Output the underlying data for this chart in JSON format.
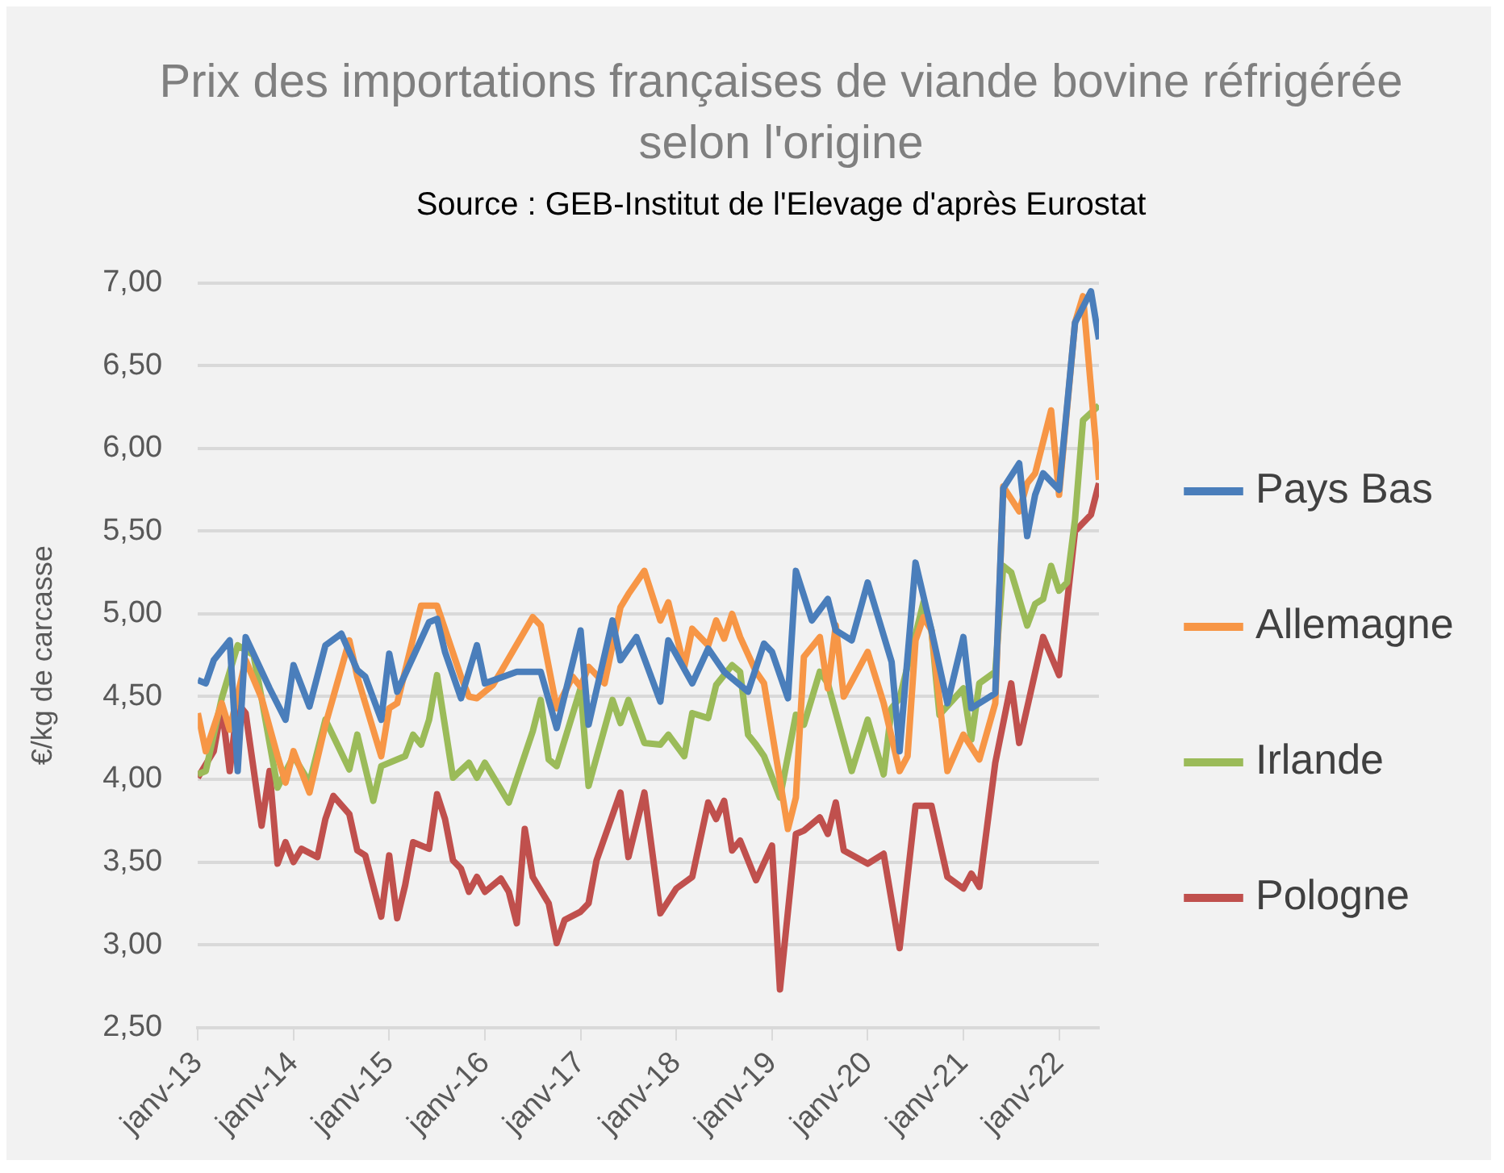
{
  "chart_data": {
    "type": "line",
    "title": "Prix des importations françaises de viande bovine réfrigérée selon l'origine",
    "annotations": [
      "Source : GEB-Institut de l'Elevage d'après Eurostat"
    ],
    "ylabel": "€/kg de carcasse",
    "grid": "y",
    "legend": "right",
    "xlim": [
      "2013-01",
      "2022-06"
    ],
    "xticks": [
      {
        "value": "2013-01",
        "label": "janv-13"
      },
      {
        "value": "2014-01",
        "label": "janv-14"
      },
      {
        "value": "2015-01",
        "label": "janv-15"
      },
      {
        "value": "2016-01",
        "label": "janv-16"
      },
      {
        "value": "2017-01",
        "label": "janv-17"
      },
      {
        "value": "2018-01",
        "label": "janv-18"
      },
      {
        "value": "2019-01",
        "label": "janv-19"
      },
      {
        "value": "2020-01",
        "label": "janv-20"
      },
      {
        "value": "2021-01",
        "label": "janv-21"
      },
      {
        "value": "2022-01",
        "label": "janv-22"
      }
    ],
    "ylim": [
      2.5,
      7
    ],
    "yticks": [
      {
        "value": 2.5,
        "label": "2,50"
      },
      {
        "value": 3,
        "label": "3,00"
      },
      {
        "value": 3.5,
        "label": "3,50"
      },
      {
        "value": 4,
        "label": "4,00"
      },
      {
        "value": 4.5,
        "label": "4,50"
      },
      {
        "value": 5,
        "label": "5,00"
      },
      {
        "value": 5.5,
        "label": "5,50"
      },
      {
        "value": 6,
        "label": "6,00"
      },
      {
        "value": 6.5,
        "label": "6,50"
      },
      {
        "value": 7,
        "label": "7,00"
      }
    ],
    "series": [
      {
        "name": "Pays Bas",
        "color": "#4a7ebb",
        "x": [
          "2013-01",
          "2013-02",
          "2013-03",
          "2013-04",
          "2013-05",
          "2013-06",
          "2013-07",
          "2013-10",
          "2013-12",
          "2014-01",
          "2014-03",
          "2014-05",
          "2014-07",
          "2014-09",
          "2014-10",
          "2014-12",
          "2015-01",
          "2015-02",
          "2015-04",
          "2015-06",
          "2015-07",
          "2015-08",
          "2015-10",
          "2015-12",
          "2016-01",
          "2016-05",
          "2016-08",
          "2016-10",
          "2017-01",
          "2017-02",
          "2017-05",
          "2017-06",
          "2017-08",
          "2017-11",
          "2017-12",
          "2018-03",
          "2018-05",
          "2018-07",
          "2018-10",
          "2018-12",
          "2019-01",
          "2019-03",
          "2019-04",
          "2019-06",
          "2019-08",
          "2019-09",
          "2019-11",
          "2020-01",
          "2020-04",
          "2020-05",
          "2020-07",
          "2020-09",
          "2020-11",
          "2021-01",
          "2021-02",
          "2021-05",
          "2021-06",
          "2021-08",
          "2021-09",
          "2021-10",
          "2021-11",
          "2022-01",
          "2022-03",
          "2022-05",
          "2022-06"
        ],
        "values": [
          4.6,
          4.58,
          4.72,
          4.78,
          4.84,
          4.05,
          4.86,
          4.55,
          4.36,
          4.69,
          4.44,
          4.81,
          4.88,
          4.66,
          4.62,
          4.36,
          4.76,
          4.53,
          4.74,
          4.95,
          4.97,
          4.77,
          4.49,
          4.81,
          4.58,
          4.65,
          4.65,
          4.31,
          4.9,
          4.33,
          4.96,
          4.72,
          4.86,
          4.47,
          4.84,
          4.58,
          4.79,
          4.65,
          4.53,
          4.82,
          4.77,
          4.49,
          5.26,
          4.96,
          5.09,
          4.9,
          4.84,
          5.19,
          4.71,
          4.17,
          5.31,
          4.9,
          4.46,
          4.86,
          4.43,
          4.52,
          5.76,
          5.91,
          5.47,
          5.72,
          5.85,
          5.75,
          6.76,
          6.95,
          6.66
        ]
      },
      {
        "name": "Allemagne",
        "color": "#f79646",
        "x": [
          "2013-01",
          "2013-02",
          "2013-04",
          "2013-05",
          "2013-07",
          "2013-09",
          "2013-11",
          "2013-12",
          "2014-01",
          "2014-03",
          "2014-05",
          "2014-08",
          "2014-09",
          "2014-12",
          "2015-01",
          "2015-02",
          "2015-05",
          "2015-07",
          "2015-10",
          "2015-11",
          "2015-12",
          "2016-02",
          "2016-03",
          "2016-07",
          "2016-08",
          "2016-10",
          "2016-12",
          "2017-01",
          "2017-02",
          "2017-04",
          "2017-06",
          "2017-07",
          "2017-09",
          "2017-11",
          "2017-12",
          "2018-02",
          "2018-03",
          "2018-05",
          "2018-06",
          "2018-07",
          "2018-08",
          "2018-09",
          "2018-11",
          "2018-12",
          "2019-03",
          "2019-04",
          "2019-05",
          "2019-07",
          "2019-08",
          "2019-09",
          "2019-10",
          "2020-01",
          "2020-03",
          "2020-05",
          "2020-06",
          "2020-07",
          "2020-08",
          "2020-09",
          "2020-11",
          "2021-01",
          "2021-03",
          "2021-05",
          "2021-06",
          "2021-08",
          "2021-09",
          "2021-10",
          "2021-12",
          "2022-01",
          "2022-03",
          "2022-04",
          "2022-06"
        ],
        "values": [
          4.4,
          4.17,
          4.46,
          4.3,
          4.72,
          4.49,
          4.14,
          3.98,
          4.17,
          3.92,
          4.33,
          4.84,
          4.62,
          4.14,
          4.43,
          4.46,
          5.05,
          5.05,
          4.62,
          4.5,
          4.49,
          4.57,
          4.65,
          4.98,
          4.93,
          4.43,
          4.62,
          4.56,
          4.68,
          4.58,
          5.04,
          5.12,
          5.26,
          4.96,
          5.07,
          4.68,
          4.91,
          4.81,
          4.96,
          4.85,
          5.0,
          4.86,
          4.65,
          4.58,
          3.7,
          3.89,
          4.74,
          4.86,
          4.55,
          4.93,
          4.5,
          4.77,
          4.46,
          4.05,
          4.14,
          4.84,
          4.98,
          4.9,
          4.05,
          4.27,
          4.12,
          4.46,
          5.77,
          5.62,
          5.79,
          5.85,
          6.23,
          5.72,
          6.76,
          6.92,
          5.81
        ]
      },
      {
        "name": "Irlande",
        "color": "#9bbb59",
        "x": [
          "2013-01",
          "2013-02",
          "2013-04",
          "2013-06",
          "2013-08",
          "2013-09",
          "2013-11",
          "2014-01",
          "2014-03",
          "2014-05",
          "2014-08",
          "2014-09",
          "2014-11",
          "2014-12",
          "2015-03",
          "2015-04",
          "2015-05",
          "2015-06",
          "2015-07",
          "2015-09",
          "2015-11",
          "2015-12",
          "2016-01",
          "2016-04",
          "2016-07",
          "2016-08",
          "2016-09",
          "2016-10",
          "2017-01",
          "2017-02",
          "2017-05",
          "2017-06",
          "2017-07",
          "2017-09",
          "2017-11",
          "2017-12",
          "2018-02",
          "2018-03",
          "2018-05",
          "2018-06",
          "2018-08",
          "2018-09",
          "2018-10",
          "2018-11",
          "2018-12",
          "2019-02",
          "2019-04",
          "2019-05",
          "2019-07",
          "2019-08",
          "2019-11",
          "2020-01",
          "2020-03",
          "2020-04",
          "2020-05",
          "2020-08",
          "2020-09",
          "2020-10",
          "2021-01",
          "2021-02",
          "2021-03",
          "2021-05",
          "2021-06",
          "2021-07",
          "2021-09",
          "2021-10",
          "2021-11",
          "2021-12",
          "2022-01",
          "2022-02",
          "2022-03",
          "2022-04",
          "2022-06"
        ],
        "values": [
          4.03,
          4.05,
          4.49,
          4.81,
          4.75,
          4.49,
          3.95,
          4.14,
          3.98,
          4.36,
          4.06,
          4.27,
          3.87,
          4.08,
          4.14,
          4.27,
          4.21,
          4.36,
          4.63,
          4.01,
          4.1,
          4.01,
          4.1,
          3.86,
          4.29,
          4.48,
          4.12,
          4.08,
          4.55,
          3.96,
          4.48,
          4.34,
          4.48,
          4.22,
          4.21,
          4.27,
          4.14,
          4.4,
          4.37,
          4.57,
          4.69,
          4.65,
          4.27,
          4.21,
          4.14,
          3.89,
          4.39,
          4.33,
          4.65,
          4.58,
          4.05,
          4.36,
          4.03,
          4.43,
          4.49,
          5.07,
          4.9,
          4.39,
          4.55,
          4.24,
          4.58,
          4.65,
          5.29,
          5.25,
          4.93,
          5.06,
          5.09,
          5.29,
          5.14,
          5.19,
          5.57,
          6.17,
          6.26
        ]
      },
      {
        "name": "Pologne",
        "color": "#c0504d",
        "x": [
          "2013-01",
          "2013-03",
          "2013-04",
          "2013-05",
          "2013-06",
          "2013-07",
          "2013-09",
          "2013-10",
          "2013-11",
          "2013-12",
          "2014-01",
          "2014-02",
          "2014-04",
          "2014-05",
          "2014-06",
          "2014-08",
          "2014-09",
          "2014-10",
          "2014-12",
          "2015-01",
          "2015-02",
          "2015-03",
          "2015-04",
          "2015-06",
          "2015-07",
          "2015-08",
          "2015-09",
          "2015-10",
          "2015-11",
          "2015-12",
          "2016-01",
          "2016-03",
          "2016-04",
          "2016-05",
          "2016-06",
          "2016-07",
          "2016-09",
          "2016-10",
          "2016-11",
          "2017-01",
          "2017-02",
          "2017-03",
          "2017-06",
          "2017-07",
          "2017-09",
          "2017-11",
          "2018-01",
          "2018-03",
          "2018-05",
          "2018-06",
          "2018-07",
          "2018-08",
          "2018-09",
          "2018-11",
          "2019-01",
          "2019-02",
          "2019-04",
          "2019-05",
          "2019-07",
          "2019-08",
          "2019-09",
          "2019-10",
          "2020-01",
          "2020-03",
          "2020-05",
          "2020-07",
          "2020-09",
          "2020-11",
          "2021-01",
          "2021-02",
          "2021-03",
          "2021-05",
          "2021-07",
          "2021-08",
          "2021-11",
          "2022-01",
          "2022-03",
          "2022-05",
          "2022-06"
        ],
        "values": [
          4.01,
          4.17,
          4.44,
          4.05,
          4.46,
          4.4,
          3.72,
          4.05,
          3.49,
          3.62,
          3.5,
          3.58,
          3.53,
          3.76,
          3.9,
          3.79,
          3.57,
          3.54,
          3.17,
          3.54,
          3.16,
          3.36,
          3.62,
          3.58,
          3.91,
          3.76,
          3.51,
          3.46,
          3.32,
          3.41,
          3.32,
          3.4,
          3.32,
          3.13,
          3.7,
          3.41,
          3.25,
          3.01,
          3.15,
          3.2,
          3.25,
          3.51,
          3.92,
          3.53,
          3.92,
          3.19,
          3.34,
          3.41,
          3.86,
          3.76,
          3.87,
          3.57,
          3.63,
          3.39,
          3.6,
          2.73,
          3.67,
          3.69,
          3.77,
          3.67,
          3.86,
          3.57,
          3.49,
          3.55,
          2.98,
          3.84,
          3.84,
          3.41,
          3.34,
          3.43,
          3.35,
          4.1,
          4.58,
          4.22,
          4.86,
          4.63,
          5.5,
          5.6,
          5.79
        ]
      }
    ]
  }
}
